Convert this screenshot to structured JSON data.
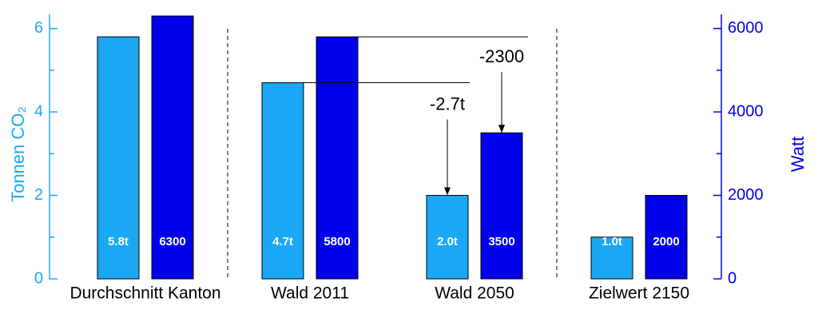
{
  "chart_data": {
    "type": "bar",
    "categories": [
      "Durchschnitt Kanton",
      "Wald 2011",
      "Wald 2050",
      "Zielwert 2150"
    ],
    "series": [
      {
        "name": "Tonnen CO₂",
        "color": "#1aa8f4",
        "values": [
          5.8,
          4.7,
          2.0,
          1.0
        ],
        "value_labels": [
          "5.8t",
          "4.7t",
          "2.0t",
          "1.0t"
        ]
      },
      {
        "name": "Watt",
        "color": "#0000ea",
        "axis": "y2",
        "values": [
          6300,
          5800,
          3500,
          2000
        ]
      }
    ],
    "ylabel": "Tonnen CO₂",
    "y2label": "Watt",
    "ylim": [
      0,
      6.3
    ],
    "yticks": [
      0,
      2,
      4,
      6
    ],
    "yminorticks": [
      1,
      3,
      5
    ],
    "y2lim": [
      0,
      6300
    ],
    "y2ticks": [
      0,
      2000,
      4000,
      6000
    ],
    "y2minorticks": [
      1000,
      3000,
      5000
    ],
    "annotations": [
      {
        "text": "-2.7t"
      },
      {
        "text": "-2300"
      }
    ]
  }
}
